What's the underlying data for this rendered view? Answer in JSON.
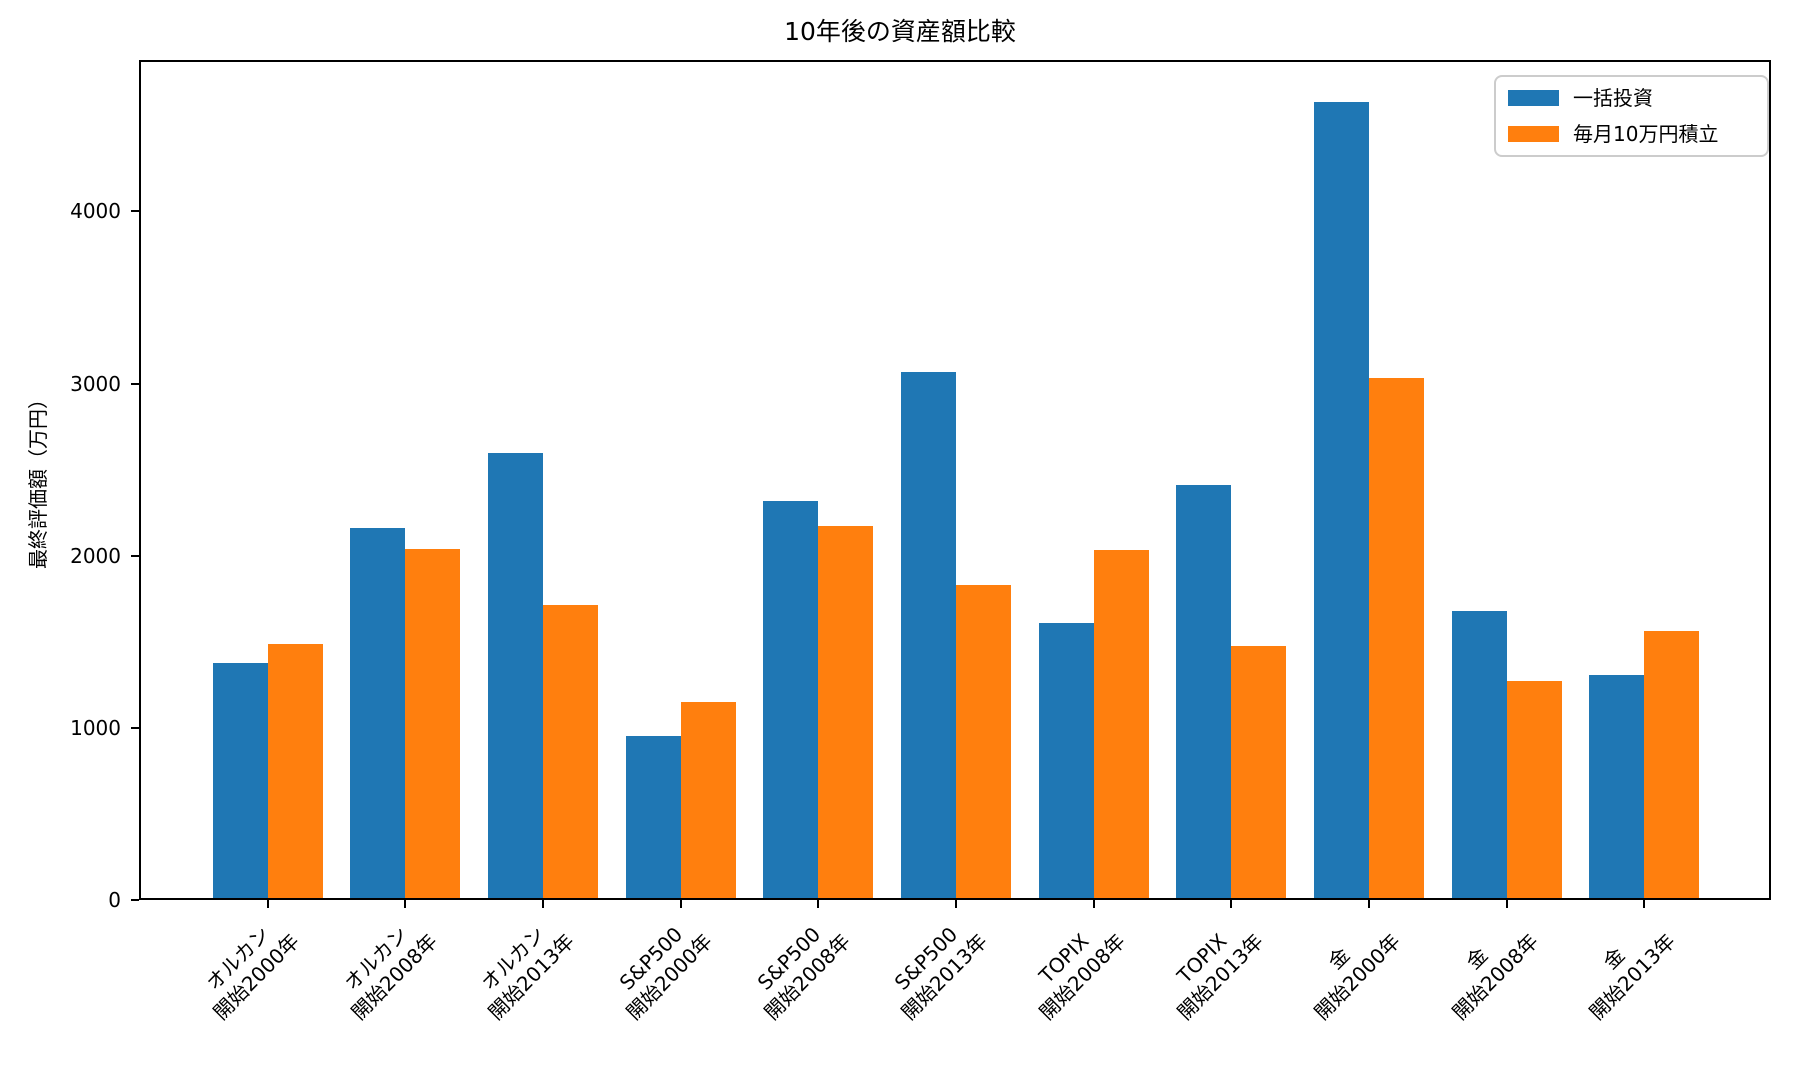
{
  "chart_data": {
    "type": "bar",
    "title": "10年後の資産額比較",
    "xlabel": "",
    "ylabel": "最終評価額（万円）",
    "ylim": [
      0,
      4880
    ],
    "yticks": [
      0,
      1000,
      2000,
      3000,
      4000
    ],
    "grid": false,
    "legend_position": "upper right",
    "categories": [
      "オルカン\n開始2000年",
      "オルカン\n開始2008年",
      "オルカン\n開始2013年",
      "S&P500\n開始2000年",
      "S&P500\n開始2008年",
      "S&P500\n開始2013年",
      "TOPIX\n開始2008年",
      "TOPIX\n開始2013年",
      "金\n開始2000年",
      "金\n開始2008年",
      "金\n開始2013年"
    ],
    "series": [
      {
        "name": "一括投資",
        "color": "#1f77b4",
        "values": [
          1375,
          2160,
          2595,
          955,
          2320,
          3065,
          1610,
          2410,
          4635,
          1680,
          1310
        ]
      },
      {
        "name": "毎月10万円積立",
        "color": "#ff7f0e",
        "values": [
          1490,
          2040,
          1715,
          1150,
          2175,
          1830,
          2035,
          1475,
          3035,
          1270,
          1565
        ]
      }
    ]
  }
}
